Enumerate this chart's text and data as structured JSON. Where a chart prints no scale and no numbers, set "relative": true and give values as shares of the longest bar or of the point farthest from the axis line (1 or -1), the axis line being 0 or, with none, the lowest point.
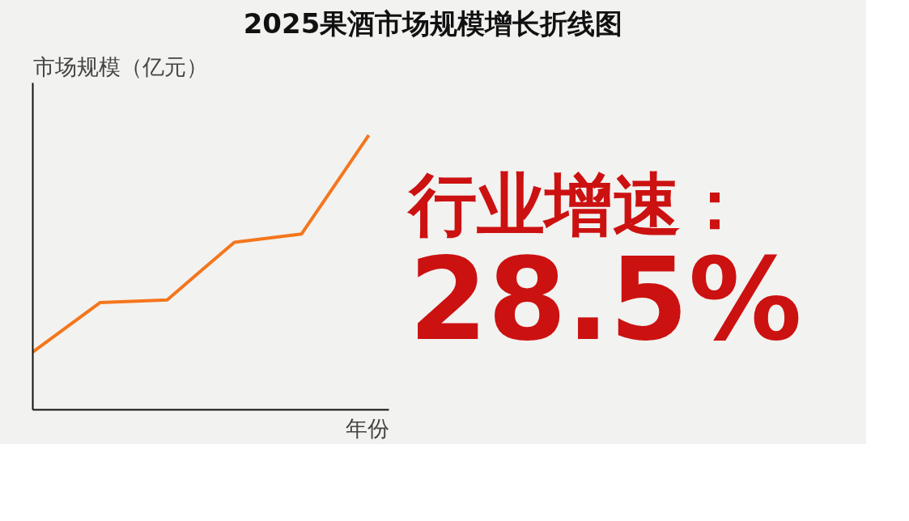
{
  "chart_data": {
    "type": "line",
    "title": "2025果酒市场规模增长折线图",
    "xlabel": "年份",
    "ylabel": "市场规模（亿元）",
    "categories": [
      null,
      null,
      null,
      null,
      null,
      null
    ],
    "series": [
      {
        "color": "#f4761c",
        "values": [
          0.21,
          0.39,
          0.4,
          0.61,
          0.64,
          1.0
        ]
      }
    ],
    "relative": true,
    "marker": "none",
    "annotations": [
      "行业增速：",
      "28.5%"
    ]
  }
}
